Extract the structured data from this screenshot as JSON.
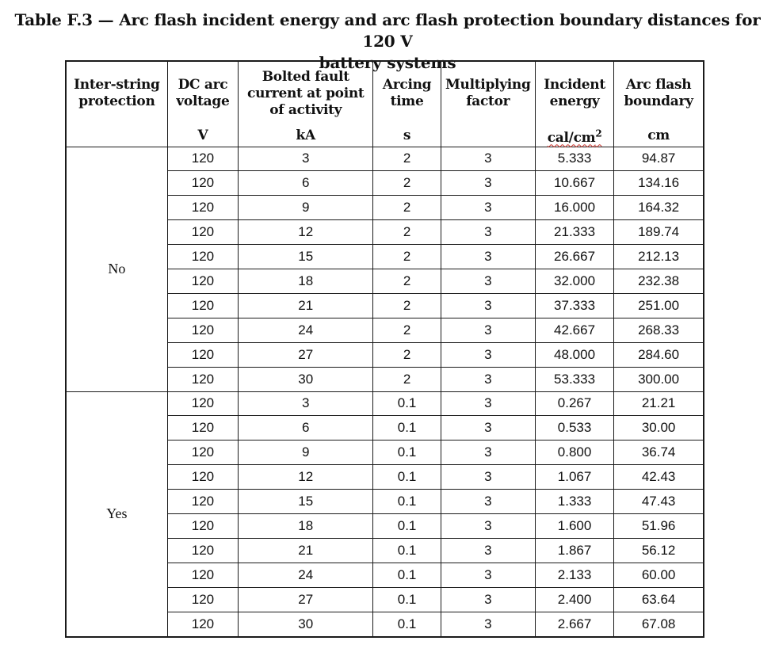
{
  "caption": {
    "line1": "Table F.3 — Arc flash incident energy and arc flash protection boundary distances for 120 V",
    "line2": "battery systems"
  },
  "columns": [
    {
      "label_lines": [
        "Inter-string",
        "protection"
      ],
      "unit": ""
    },
    {
      "label_lines": [
        "DC arc",
        "voltage"
      ],
      "unit": "V"
    },
    {
      "label_lines": [
        "Bolted fault",
        "current at point",
        "of activity"
      ],
      "unit": "kA"
    },
    {
      "label_lines": [
        "Arcing",
        "time"
      ],
      "unit": "s"
    },
    {
      "label_lines": [
        "Multiplying",
        "factor"
      ],
      "unit": ""
    },
    {
      "label_lines": [
        "Incident",
        "energy"
      ],
      "unit": "cal/cm2"
    },
    {
      "label_lines": [
        "Arc flash",
        "boundary"
      ],
      "unit": "cm"
    }
  ],
  "groups": [
    {
      "protection": "No",
      "rows": [
        [
          "120",
          "3",
          "2",
          "3",
          "5.333",
          "94.87"
        ],
        [
          "120",
          "6",
          "2",
          "3",
          "10.667",
          "134.16"
        ],
        [
          "120",
          "9",
          "2",
          "3",
          "16.000",
          "164.32"
        ],
        [
          "120",
          "12",
          "2",
          "3",
          "21.333",
          "189.74"
        ],
        [
          "120",
          "15",
          "2",
          "3",
          "26.667",
          "212.13"
        ],
        [
          "120",
          "18",
          "2",
          "3",
          "32.000",
          "232.38"
        ],
        [
          "120",
          "21",
          "2",
          "3",
          "37.333",
          "251.00"
        ],
        [
          "120",
          "24",
          "2",
          "3",
          "42.667",
          "268.33"
        ],
        [
          "120",
          "27",
          "2",
          "3",
          "48.000",
          "284.60"
        ],
        [
          "120",
          "30",
          "2",
          "3",
          "53.333",
          "300.00"
        ]
      ]
    },
    {
      "protection": "Yes",
      "rows": [
        [
          "120",
          "3",
          "0.1",
          "3",
          "0.267",
          "21.21"
        ],
        [
          "120",
          "6",
          "0.1",
          "3",
          "0.533",
          "30.00"
        ],
        [
          "120",
          "9",
          "0.1",
          "3",
          "0.800",
          "36.74"
        ],
        [
          "120",
          "12",
          "0.1",
          "3",
          "1.067",
          "42.43"
        ],
        [
          "120",
          "15",
          "0.1",
          "3",
          "1.333",
          "47.43"
        ],
        [
          "120",
          "18",
          "0.1",
          "3",
          "1.600",
          "51.96"
        ],
        [
          "120",
          "21",
          "0.1",
          "3",
          "1.867",
          "56.12"
        ],
        [
          "120",
          "24",
          "0.1",
          "3",
          "2.133",
          "60.00"
        ],
        [
          "120",
          "27",
          "0.1",
          "3",
          "2.400",
          "63.64"
        ],
        [
          "120",
          "30",
          "0.1",
          "3",
          "2.667",
          "67.08"
        ]
      ]
    }
  ]
}
